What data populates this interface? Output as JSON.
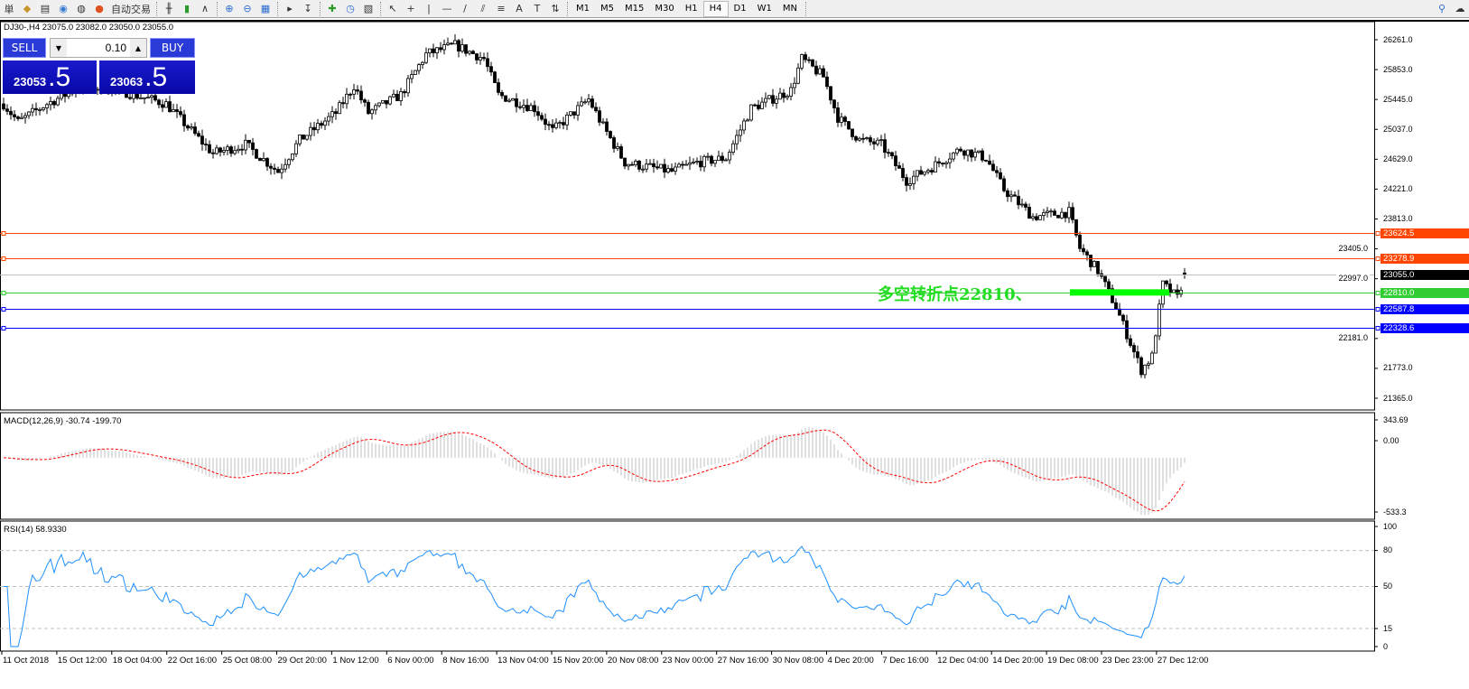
{
  "toolbar": {
    "menu_fragment": "単",
    "auto_trade_label": "自动交易",
    "icons": [
      "expert-advisor-icon",
      "market-icon",
      "navigator-icon",
      "signal-icon",
      "auto-trading-icon",
      "bar-chart-icon",
      "candlestick-icon",
      "line-chart-icon",
      "zoom-in-icon",
      "zoom-out-icon",
      "tile-windows-icon",
      "chart-shift-icon",
      "autoscroll-icon",
      "add-indicator-icon",
      "periods-icon",
      "templates-icon",
      "cursor-icon",
      "crosshair-icon",
      "vertical-line-icon",
      "horizontal-line-icon",
      "trendline-icon",
      "fibo-fan-icon",
      "fibo-retracement-icon",
      "text-icon",
      "text-label-icon",
      "arrows-icon",
      "search-icon",
      "chat-icon"
    ],
    "timeframes": [
      "M1",
      "M5",
      "M15",
      "M30",
      "H1",
      "H4",
      "D1",
      "W1",
      "MN"
    ],
    "active_timeframe": "H4"
  },
  "chart": {
    "title": "DJ30-,H4  23075.0 23082.0 23050.0 23055.0",
    "symbol": "DJ30-",
    "timeframe": "H4",
    "ohlc": {
      "open": 23075.0,
      "high": 23082.0,
      "low": 23050.0,
      "close": 23055.0
    }
  },
  "trade_panel": {
    "sell_label": "SELL",
    "buy_label": "BUY",
    "lots": "0.10",
    "sell_price_main": "23053",
    "sell_price_big": ".5",
    "buy_price_main": "23063",
    "buy_price_big": ".5"
  },
  "price_axis": {
    "ticks": [
      "26261.0",
      "25853.0",
      "25445.0",
      "25037.0",
      "24629.0",
      "24221.0",
      "23813.0",
      "23405.0",
      "22997.0",
      "22181.0",
      "21773.0",
      "21365.0"
    ],
    "range": [
      21365.0,
      26261.0
    ]
  },
  "hlines": [
    {
      "price": 23624.5,
      "label": "23624.5",
      "color": "#ff4500"
    },
    {
      "price": 23278.9,
      "label": "23278.9",
      "color": "#ff4500"
    },
    {
      "price": 23055.0,
      "label": "23055.0",
      "color": "#000000",
      "line_color": "#c0c0c0"
    },
    {
      "price": 22810.0,
      "label": "22810.0",
      "color": "#32cd32"
    },
    {
      "price": 22587.8,
      "label": "22587.8",
      "color": "#0000ff"
    },
    {
      "price": 22328.6,
      "label": "22328.6",
      "color": "#0000ff"
    }
  ],
  "annotation": {
    "text": "多空转折点22810、",
    "color": "#22dd22",
    "level": 22810.0
  },
  "price_path": [
    [
      0,
      25385
    ],
    [
      4,
      25139
    ],
    [
      12,
      25385
    ],
    [
      22,
      25632
    ],
    [
      32,
      25570
    ],
    [
      45,
      25385
    ],
    [
      52,
      25016
    ],
    [
      58,
      24707
    ],
    [
      67,
      24830
    ],
    [
      76,
      24461
    ],
    [
      82,
      24892
    ],
    [
      92,
      25262
    ],
    [
      97,
      25632
    ],
    [
      101,
      25262
    ],
    [
      110,
      25509
    ],
    [
      117,
      26064
    ],
    [
      125,
      26187
    ],
    [
      133,
      26002
    ],
    [
      137,
      25509
    ],
    [
      147,
      25324
    ],
    [
      152,
      25016
    ],
    [
      162,
      25447
    ],
    [
      166,
      25077
    ],
    [
      172,
      24584
    ],
    [
      185,
      24461
    ],
    [
      192,
      24584
    ],
    [
      200,
      24646
    ],
    [
      207,
      25324
    ],
    [
      218,
      25570
    ],
    [
      221,
      26002
    ],
    [
      227,
      25755
    ],
    [
      231,
      25200
    ],
    [
      237,
      24892
    ],
    [
      243,
      24830
    ],
    [
      250,
      24337
    ],
    [
      257,
      24522
    ],
    [
      265,
      24769
    ],
    [
      272,
      24646
    ],
    [
      277,
      24214
    ],
    [
      285,
      23844
    ],
    [
      295,
      23905
    ],
    [
      298,
      23413
    ],
    [
      303,
      23105
    ],
    [
      308,
      22612
    ],
    [
      315,
      21750
    ],
    [
      318,
      21934
    ],
    [
      321,
      22920
    ],
    [
      325,
      22735
    ],
    [
      327,
      23055
    ]
  ],
  "macd": {
    "label": "MACD(12,26,9) -30.74 -199.70",
    "ticks": [
      "343.69",
      "0.00",
      "-533.3"
    ],
    "range": [
      -533.3,
      343.69
    ],
    "hist_color": "#c0c0c0",
    "signal_color": "#ff0000"
  },
  "rsi": {
    "label": "RSI(14) 58.9330",
    "ticks": [
      "100",
      "80",
      "50",
      "15",
      "0"
    ],
    "levels": [
      80,
      50,
      15
    ],
    "color": "#1e90ff"
  },
  "time_axis": [
    "11 Oct 2018",
    "15 Oct 12:00",
    "18 Oct 04:00",
    "22 Oct 16:00",
    "25 Oct 08:00",
    "29 Oct 20:00",
    "1 Nov 12:00",
    "6 Nov 00:00",
    "8 Nov 16:00",
    "13 Nov 04:00",
    "15 Nov 20:00",
    "20 Nov 08:00",
    "23 Nov 00:00",
    "27 Nov 16:00",
    "30 Nov 08:00",
    "4 Dec 20:00",
    "7 Dec 16:00",
    "12 Dec 04:00",
    "14 Dec 20:00",
    "19 Dec 08:00",
    "23 Dec 23:00",
    "27 Dec 12:00"
  ]
}
